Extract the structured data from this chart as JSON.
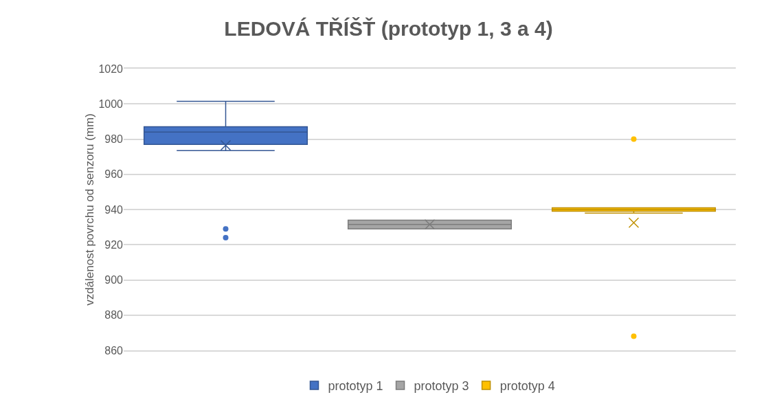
{
  "chart_data": {
    "type": "box",
    "title": "LEDOVÁ TŘÍŠŤ (prototyp 1, 3 a 4)",
    "ylabel": "vzdálenost povrchu od senzoru (mm)",
    "categories": [
      null
    ],
    "series": [
      {
        "name": "prototyp 1",
        "color": "#4472c4",
        "boxes": [
          {
            "low": 973.5,
            "q1": 977,
            "median": 984,
            "q3": 987,
            "high": 1001.5,
            "mean": 976.5,
            "outliers": [
              929,
              924
            ]
          }
        ]
      },
      {
        "name": "prototyp 3",
        "color": "#a5a5a5",
        "boxes": [
          {
            "low": 929,
            "q1": 929,
            "median": 931.5,
            "q3": 934,
            "high": 934,
            "mean": 931.5
          }
        ]
      },
      {
        "name": "prototyp 4",
        "color": "#ffc000",
        "boxes": [
          {
            "low": 938,
            "q1": 939,
            "median": 940,
            "q3": 941,
            "high": 941,
            "mean": 932.5,
            "outliers": [
              980,
              868
            ]
          }
        ]
      }
    ],
    "ylim": [
      860,
      1020
    ],
    "yticks": [
      860,
      880,
      900,
      920,
      940,
      960,
      980,
      1000,
      1020
    ],
    "grid": "y",
    "legend": "bottom"
  }
}
